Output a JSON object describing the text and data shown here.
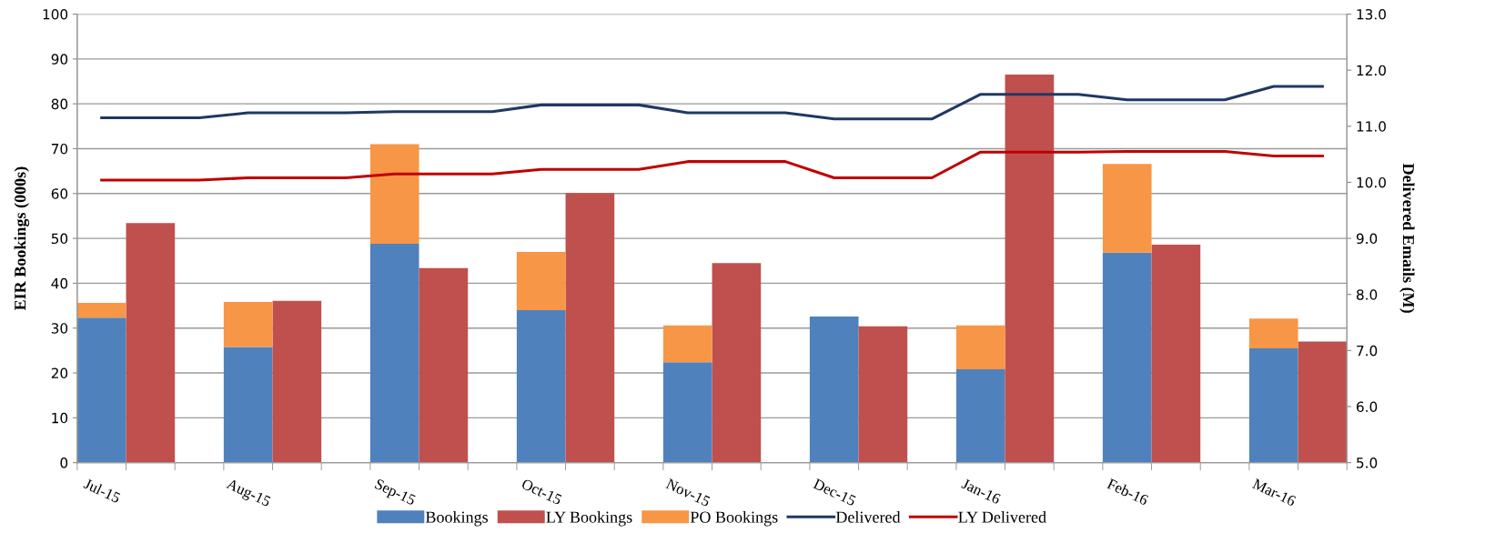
{
  "chart_data": {
    "type": "bar",
    "stacked": true,
    "categories": [
      "Jul-15",
      null,
      null,
      "Aug-15",
      null,
      null,
      "Sep-15",
      null,
      null,
      "Oct-15",
      null,
      null,
      "Nov-15",
      null,
      null,
      "Dec-15",
      null,
      null,
      "Jan-16",
      null,
      null,
      "Feb-16",
      null,
      null,
      "Mar-16",
      null
    ],
    "ylabel": "EIR Bookings (000s)",
    "y2label": "Delivered Emails (M)",
    "ylim": [
      0,
      100
    ],
    "yticks": [
      0,
      10,
      20,
      30,
      40,
      50,
      60,
      70,
      80,
      90,
      100
    ],
    "y2lim": [
      5,
      13
    ],
    "y2ticks": [
      {
        "value": 5,
        "label": "5.0"
      },
      {
        "value": 6,
        "label": "6.0"
      },
      {
        "value": 7,
        "label": "7.0"
      },
      {
        "value": 8,
        "label": "8.0"
      },
      {
        "value": 9,
        "label": "9.0"
      },
      {
        "value": 10,
        "label": "10.0"
      },
      {
        "value": 11,
        "label": "11.0"
      },
      {
        "value": 12,
        "label": "12.0"
      },
      {
        "value": 13,
        "label": "13.0"
      }
    ],
    "grid": "y",
    "legend": "bottom",
    "series": [
      {
        "name": "Bookings",
        "color": "#4f81bd",
        "values": [
          32.3,
          null,
          null,
          25.8,
          null,
          null,
          48.8,
          null,
          null,
          34.0,
          null,
          null,
          22.4,
          null,
          null,
          32.6,
          null,
          null,
          20.8,
          null,
          null,
          46.8,
          null,
          null,
          25.5,
          null
        ]
      },
      {
        "name": "LY Bookings",
        "color": "#c0504d",
        "values": [
          null,
          53.4,
          null,
          null,
          36.1,
          null,
          null,
          43.4,
          null,
          null,
          60.1,
          null,
          null,
          44.5,
          null,
          null,
          30.4,
          null,
          null,
          86.5,
          null,
          null,
          48.6,
          null,
          null,
          27.0
        ]
      },
      {
        "name": "PO Bookings",
        "color": "#f79646",
        "values": [
          3.3,
          null,
          null,
          10.0,
          null,
          null,
          22.2,
          null,
          null,
          13.0,
          null,
          null,
          8.2,
          null,
          null,
          null,
          null,
          null,
          9.8,
          null,
          null,
          19.8,
          null,
          null,
          6.6,
          null
        ]
      },
      {
        "name": "Delivered",
        "color": "#1f3864",
        "type": "line",
        "axis": "y2",
        "values": [
          11.15,
          11.15,
          11.15,
          11.24,
          11.24,
          11.24,
          11.26,
          11.26,
          11.26,
          11.38,
          11.38,
          11.38,
          11.24,
          11.24,
          11.24,
          11.13,
          11.13,
          11.13,
          11.57,
          11.57,
          11.57,
          11.47,
          11.47,
          11.47,
          11.71,
          11.71
        ]
      },
      {
        "name": "LY Delivered",
        "color": "#c00000",
        "type": "line",
        "axis": "y2",
        "values": [
          10.04,
          10.04,
          10.04,
          10.08,
          10.08,
          10.08,
          10.15,
          10.15,
          10.15,
          10.23,
          10.23,
          10.23,
          10.37,
          10.37,
          10.37,
          10.08,
          10.08,
          10.08,
          10.54,
          10.54,
          10.54,
          10.55,
          10.55,
          10.55,
          10.47,
          10.47
        ]
      }
    ]
  }
}
